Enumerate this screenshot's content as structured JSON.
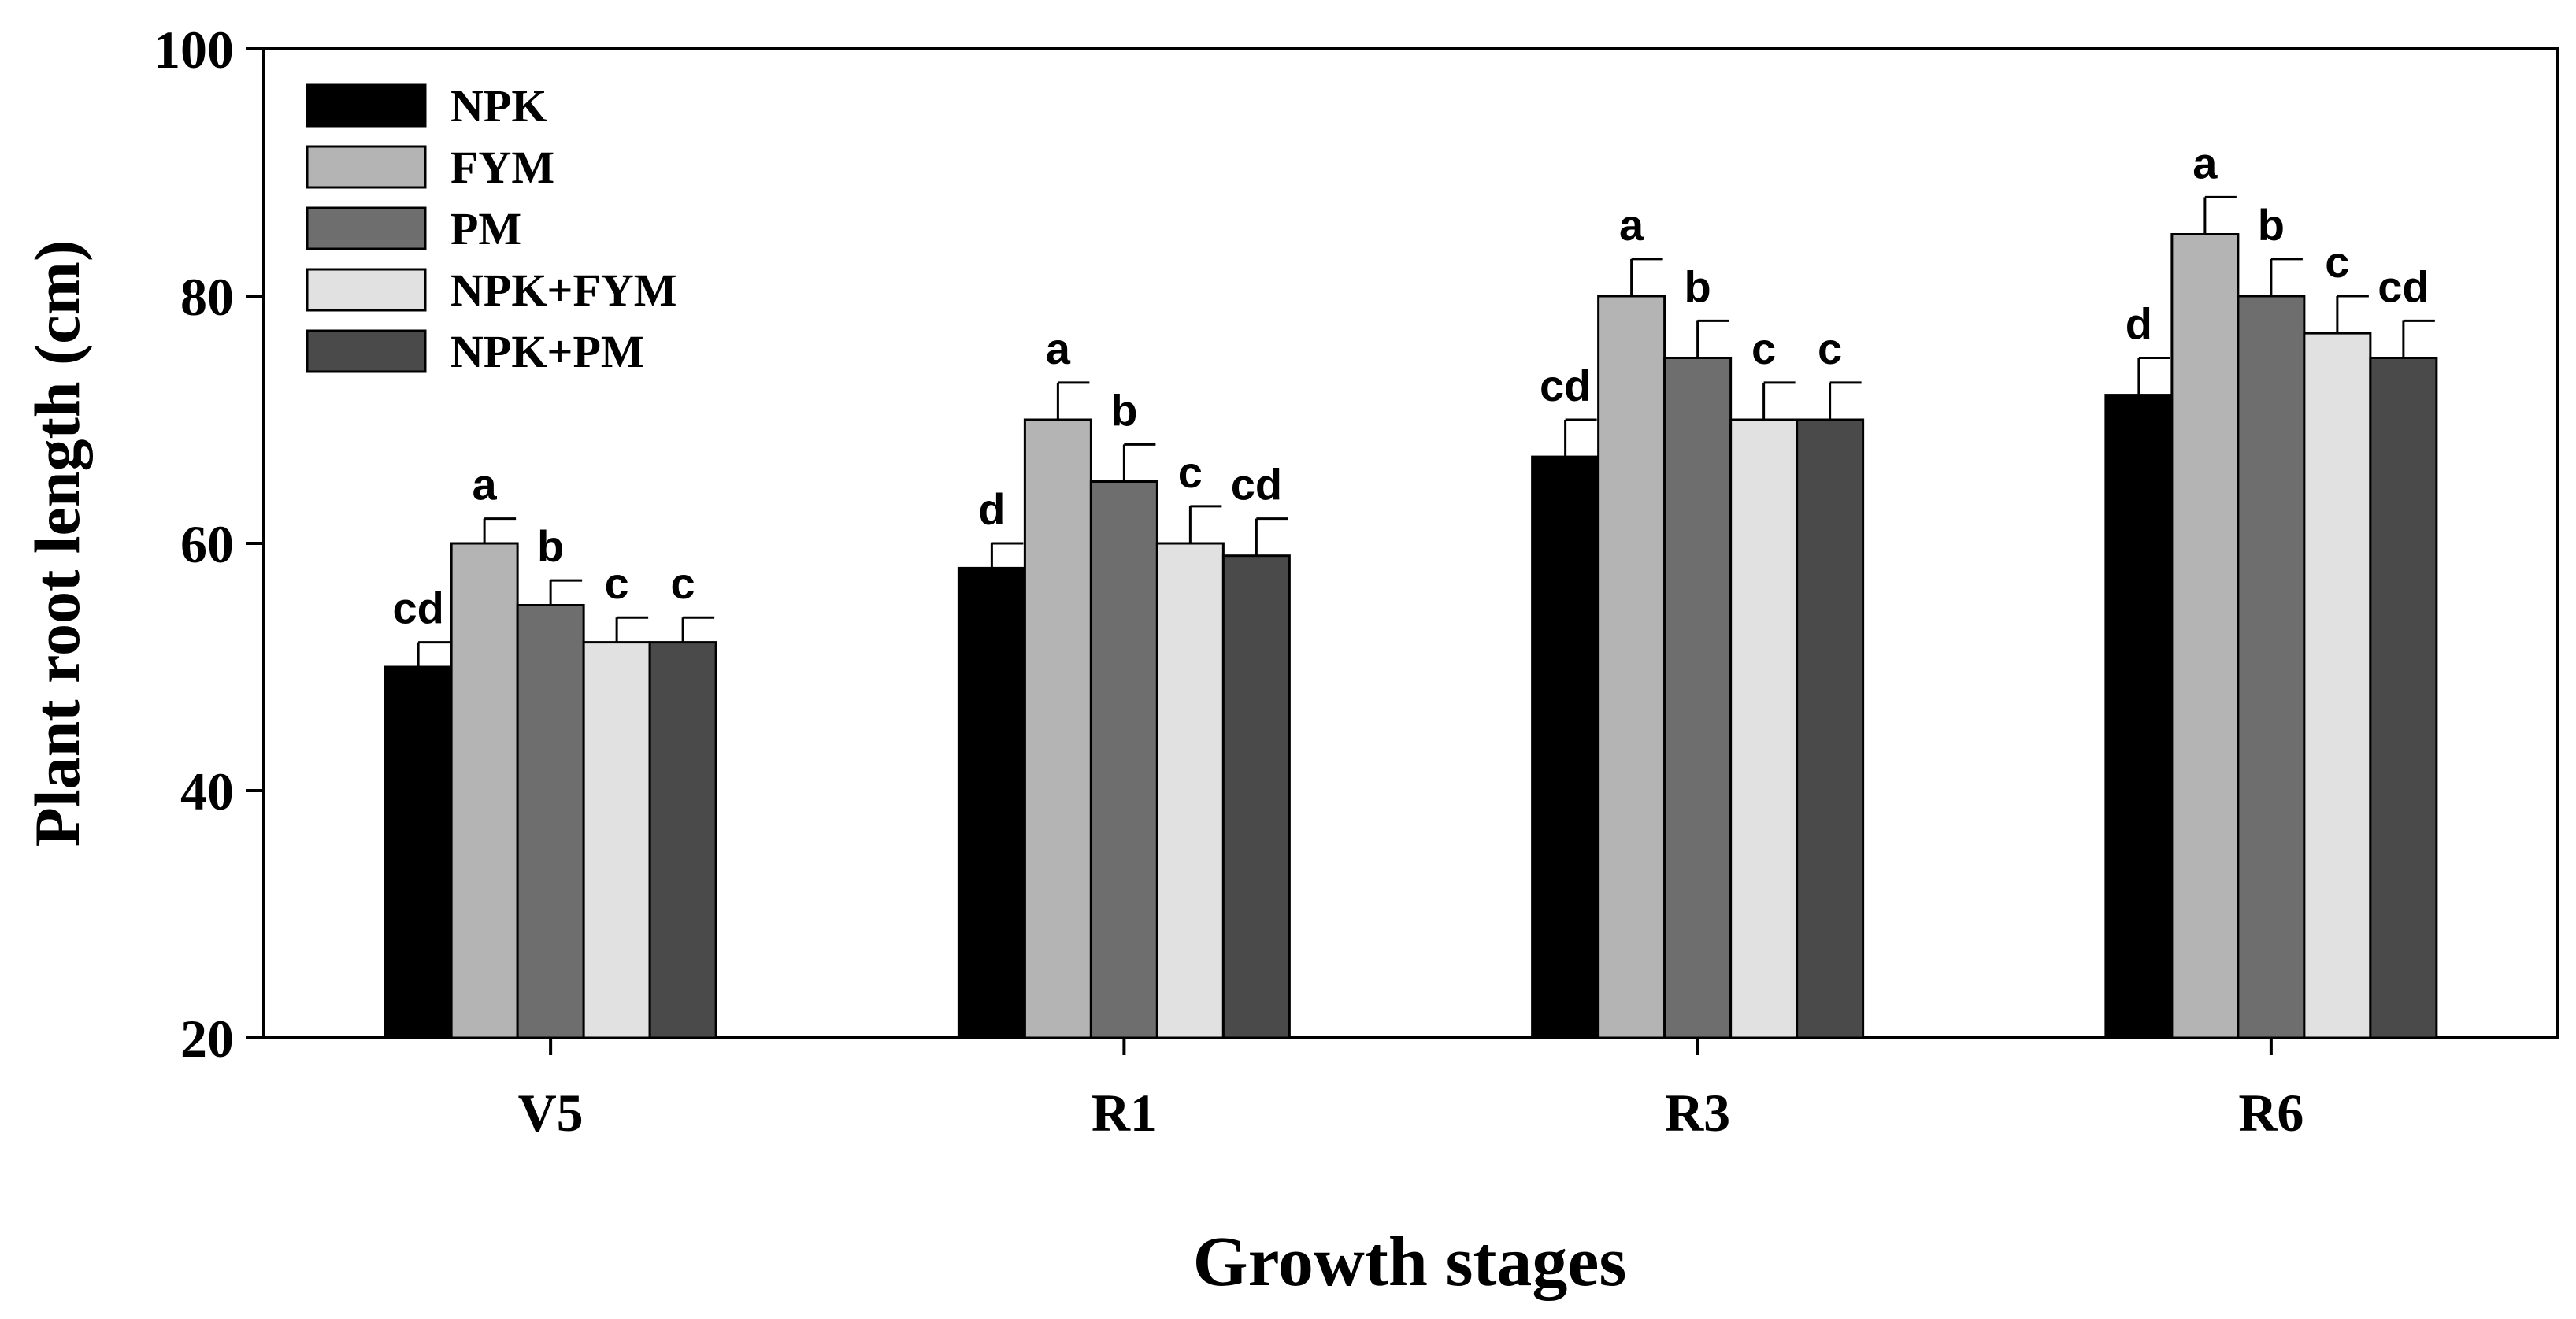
{
  "chart_data": {
    "type": "bar",
    "title": "",
    "xlabel": "Growth stages",
    "ylabel": "Plant root length (cm)",
    "ylim": [
      20,
      100
    ],
    "yticks": [
      20,
      40,
      60,
      80,
      100
    ],
    "grid": false,
    "legend_position": "top-left",
    "categories": [
      "V5",
      "R1",
      "R3",
      "R6"
    ],
    "series": [
      {
        "name": "NPK",
        "color": "#000000",
        "values": [
          50,
          58,
          67,
          72
        ],
        "errors": [
          2,
          2,
          3,
          3
        ],
        "labels": [
          "cd",
          "d",
          "cd",
          "d"
        ]
      },
      {
        "name": "FYM",
        "color": "#b4b4b4",
        "values": [
          60,
          70,
          80,
          85
        ],
        "errors": [
          2,
          3,
          3,
          3
        ],
        "labels": [
          "a",
          "a",
          "a",
          "a"
        ]
      },
      {
        "name": "PM",
        "color": "#6e6e6e",
        "values": [
          55,
          65,
          75,
          80
        ],
        "errors": [
          2,
          3,
          3,
          3
        ],
        "labels": [
          "b",
          "b",
          "b",
          "b"
        ]
      },
      {
        "name": "NPK+FYM",
        "color": "#e1e1e1",
        "values": [
          52,
          60,
          70,
          77
        ],
        "errors": [
          2,
          3,
          3,
          3
        ],
        "labels": [
          "c",
          "c",
          "c",
          "c"
        ]
      },
      {
        "name": "NPK+PM",
        "color": "#4a4a4a",
        "values": [
          52,
          59,
          70,
          75
        ],
        "errors": [
          2,
          3,
          3,
          3
        ],
        "labels": [
          "c",
          "cd",
          "c",
          "cd"
        ]
      }
    ]
  }
}
